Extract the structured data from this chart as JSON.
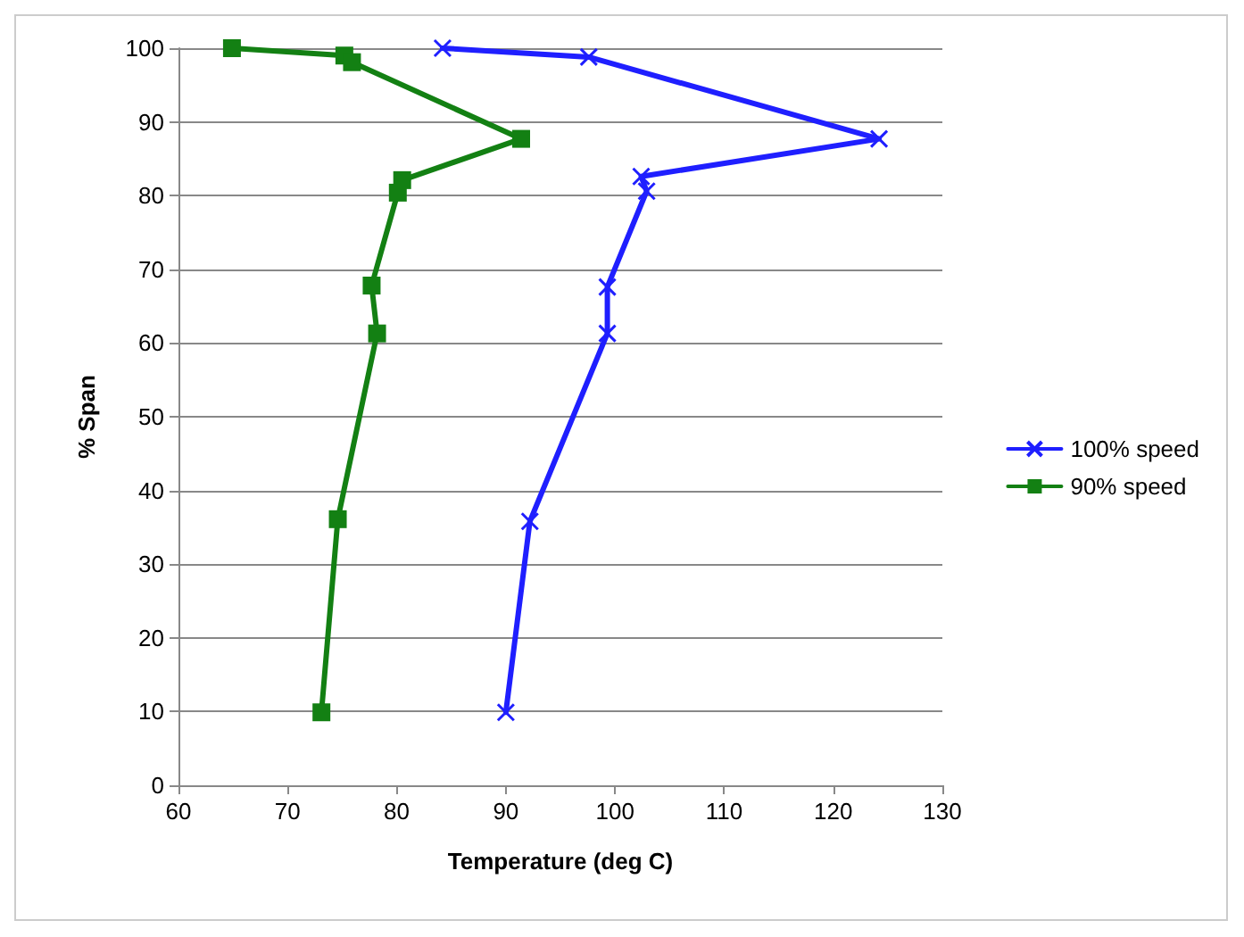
{
  "chart_data": {
    "type": "line",
    "xlabel": "Temperature (deg C)",
    "ylabel": "% Span",
    "xlim": [
      60,
      130
    ],
    "xticks": [
      60,
      70,
      80,
      90,
      100,
      110,
      120,
      130
    ],
    "ylim": [
      0,
      100
    ],
    "yticks": [
      0,
      10,
      20,
      30,
      40,
      50,
      60,
      70,
      80,
      90,
      100
    ],
    "grid": "y",
    "legend": "right",
    "line_style": "solid",
    "series": [
      {
        "name": "100% speed",
        "color": "#1f1fff",
        "marker": "cross",
        "x": [
          84.2,
          97.6,
          124.2,
          102.4,
          102.9,
          99.3,
          99.3,
          92.2,
          90.0
        ],
        "values": [
          100,
          98.8,
          87.7,
          82.6,
          80.6,
          67.6,
          61.3,
          35.8,
          9.9
        ]
      },
      {
        "name": "90% speed",
        "color": "#138013",
        "marker": "square",
        "x": [
          64.9,
          75.2,
          75.9,
          91.4,
          80.5,
          80.1,
          77.7,
          78.2,
          74.6,
          73.1
        ],
        "values": [
          100,
          99,
          98.1,
          87.7,
          82.1,
          80.4,
          67.8,
          61.3,
          36.1,
          9.9
        ]
      }
    ]
  }
}
